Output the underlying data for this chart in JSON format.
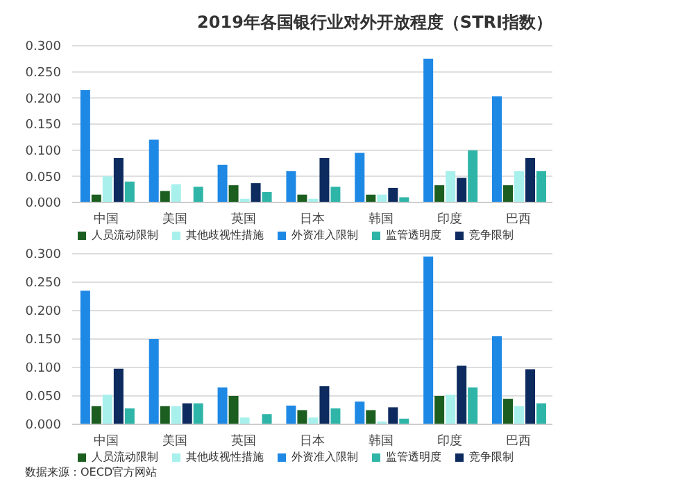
{
  "chart_data": [
    {
      "type": "bar",
      "title": "2019年各国银行业对外开放程度（STRI指数）",
      "categories": [
        "中国",
        "美国",
        "英国",
        "日本",
        "韩国",
        "印度",
        "巴西"
      ],
      "series": [
        {
          "name": "外资准入限制",
          "color": "#1e88e5",
          "values": [
            0.215,
            0.12,
            0.072,
            0.06,
            0.095,
            0.275,
            0.203
          ]
        },
        {
          "name": "人员流动限制",
          "color": "#1b5e20",
          "values": [
            0.015,
            0.022,
            0.033,
            0.015,
            0.015,
            0.033,
            0.033
          ]
        },
        {
          "name": "其他歧视性措施",
          "color": "#a7f0ec",
          "values": [
            0.05,
            0.035,
            0.007,
            0.007,
            0.015,
            0.06,
            0.06
          ]
        },
        {
          "name": "竞争限制",
          "color": "#0d2b5e",
          "values": [
            0.085,
            0,
            0.037,
            0.085,
            0.028,
            0.047,
            0.085
          ]
        },
        {
          "name": "监管透明度",
          "color": "#2fb5a8",
          "values": [
            0.04,
            0.03,
            0.02,
            0.03,
            0.01,
            0.1,
            0.06
          ]
        }
      ],
      "ylim": [
        0,
        0.3
      ],
      "yticks": [
        {
          "value": 0,
          "label": "0.000"
        },
        {
          "value": 0.05,
          "label": "0.050"
        },
        {
          "value": 0.1,
          "label": "0.100"
        },
        {
          "value": 0.15,
          "label": "0.150"
        },
        {
          "value": 0.2,
          "label": "0.200"
        },
        {
          "value": 0.25,
          "label": "0.250"
        },
        {
          "value": 0.3,
          "label": "0.300"
        }
      ],
      "grid": "y",
      "legend": "bottom"
    },
    {
      "type": "bar",
      "categories": [
        "中国",
        "美国",
        "英国",
        "日本",
        "韩国",
        "印度",
        "巴西"
      ],
      "series": [
        {
          "name": "外资准入限制",
          "color": "#1e88e5",
          "values": [
            0.235,
            0.15,
            0.065,
            0.033,
            0.04,
            0.295,
            0.155
          ]
        },
        {
          "name": "人员流动限制",
          "color": "#1b5e20",
          "values": [
            0.032,
            0.032,
            0.05,
            0.025,
            0.025,
            0.05,
            0.045
          ]
        },
        {
          "name": "其他歧视性措施",
          "color": "#a7f0ec",
          "values": [
            0.052,
            0.032,
            0.012,
            0.012,
            0.005,
            0.052,
            0.032
          ]
        },
        {
          "name": "竞争限制",
          "color": "#0d2b5e",
          "values": [
            0.098,
            0.037,
            0,
            0.067,
            0.03,
            0.103,
            0.097
          ]
        },
        {
          "name": "监管透明度",
          "color": "#2fb5a8",
          "values": [
            0.028,
            0.037,
            0.018,
            0.028,
            0.01,
            0.065,
            0.037
          ]
        }
      ],
      "ylim": [
        0,
        0.3
      ],
      "yticks": [
        {
          "value": 0,
          "label": "0.000"
        },
        {
          "value": 0.05,
          "label": "0.050"
        },
        {
          "value": 0.1,
          "label": "0.100"
        },
        {
          "value": 0.15,
          "label": "0.150"
        },
        {
          "value": 0.2,
          "label": "0.200"
        },
        {
          "value": 0.25,
          "label": "0.250"
        },
        {
          "value": 0.3,
          "label": "0.300"
        }
      ],
      "grid": "y",
      "legend": "bottom",
      "annotations": [
        "数据来源：OECD官方网站"
      ]
    }
  ]
}
